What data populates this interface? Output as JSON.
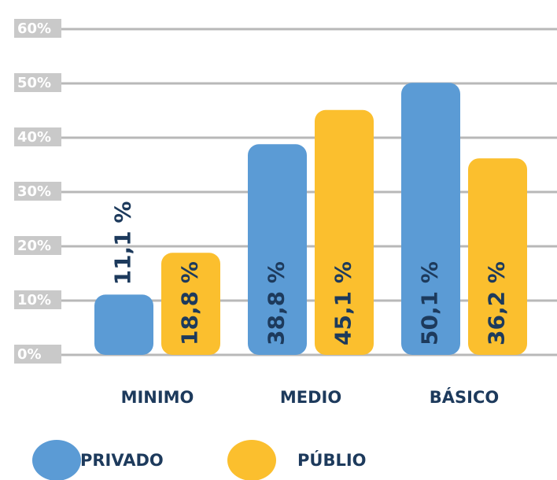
{
  "chart_data": {
    "type": "bar",
    "categories": [
      "MINIMO",
      "MEDIO",
      "BÁSICO"
    ],
    "series": [
      {
        "name": "PRIVADO",
        "color": "#5b9bd5",
        "values": [
          11.1,
          38.8,
          50.1
        ],
        "value_labels": [
          "11,1 %",
          "38,8 %",
          "50,1 %"
        ]
      },
      {
        "name": "PÚBLIO",
        "color": "#fbbf2e",
        "values": [
          18.8,
          45.1,
          36.2
        ],
        "value_labels": [
          "18,8 %",
          "45,1 %",
          "36,2 %"
        ]
      }
    ],
    "ylim": [
      0,
      60
    ],
    "yticks": [
      {
        "value": 0,
        "label": "0%"
      },
      {
        "value": 10,
        "label": "10%"
      },
      {
        "value": 20,
        "label": "20%"
      },
      {
        "value": 30,
        "label": "30%"
      },
      {
        "value": 40,
        "label": "40%"
      },
      {
        "value": 50,
        "label": "50%"
      },
      {
        "value": 60,
        "label": "60%"
      }
    ],
    "grid": true
  }
}
